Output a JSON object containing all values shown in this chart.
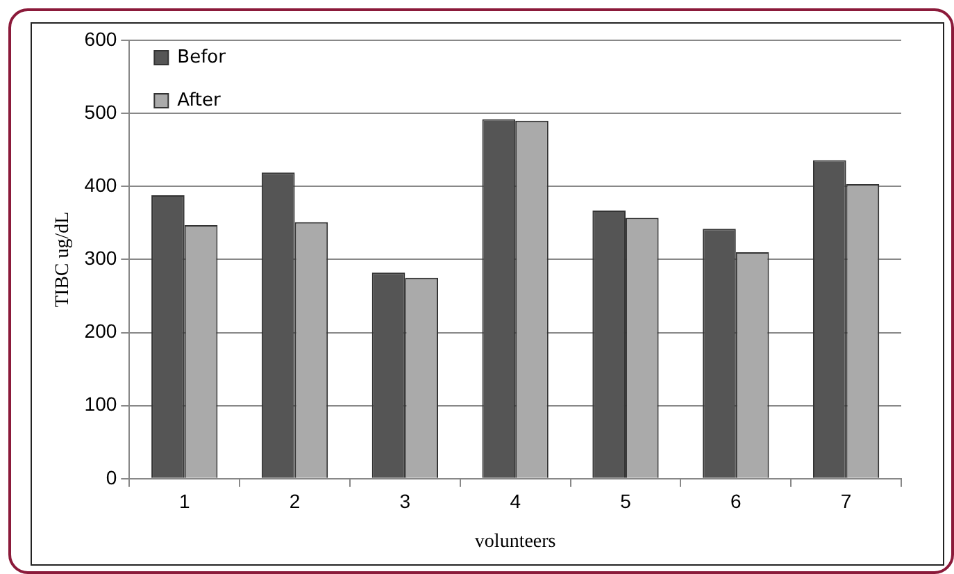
{
  "chart_data": {
    "type": "bar",
    "xlabel": "volunteers",
    "ylabel": "TIBC ug/dL",
    "categories": [
      "1",
      "2",
      "3",
      "4",
      "5",
      "6",
      "7"
    ],
    "series": [
      {
        "name": "Befor",
        "color": "#555555",
        "values": [
          388,
          419,
          282,
          492,
          367,
          342,
          436
        ]
      },
      {
        "name": "After",
        "color": "#aaaaaa",
        "values": [
          347,
          351,
          275,
          490,
          357,
          310,
          403
        ]
      }
    ],
    "ylim": [
      0,
      600
    ],
    "yticks": [
      0,
      100,
      200,
      300,
      400,
      500,
      600
    ],
    "grid": "y",
    "legend": "top left"
  }
}
